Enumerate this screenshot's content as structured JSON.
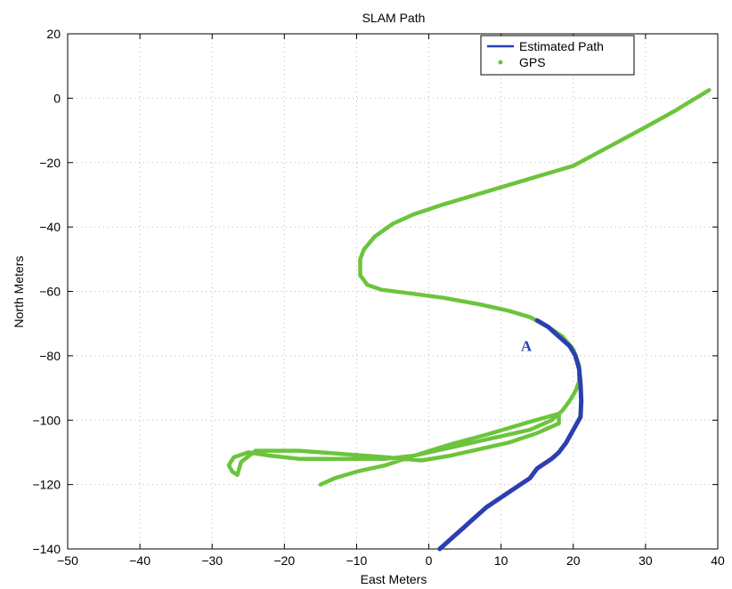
{
  "chart_data": {
    "type": "line",
    "title": "SLAM Path",
    "xlabel": "East Meters",
    "ylabel": "North Meters",
    "xlim": [
      -50,
      40
    ],
    "ylim": [
      -140,
      20
    ],
    "xticks": [
      -50,
      -40,
      -30,
      -20,
      -10,
      0,
      10,
      20,
      30,
      40
    ],
    "yticks": [
      20,
      0,
      -20,
      -40,
      -60,
      -80,
      -100,
      -120,
      -140
    ],
    "grid": true,
    "legend_position": "top-right",
    "series": [
      {
        "name": "Estimated Path",
        "color": "#2b3fb0",
        "style": "line",
        "x": [
          1.5,
          3,
          5,
          6,
          8,
          10,
          12,
          14,
          15,
          17,
          18,
          19,
          20,
          21,
          21.1,
          21,
          20.8,
          20.3,
          19.5,
          18,
          16.5,
          15
        ],
        "y": [
          -140,
          -137,
          -133,
          -131,
          -127,
          -124,
          -121,
          -118,
          -115,
          -112,
          -110,
          -107,
          -103,
          -99,
          -94,
          -89,
          -84,
          -80,
          -77,
          -74,
          -71,
          -69
        ]
      },
      {
        "name": "GPS",
        "color": "#6cc43c",
        "style": "dots",
        "x": [
          38.8,
          34,
          30,
          25,
          20,
          14,
          8,
          2,
          -2,
          -5,
          -7.5,
          -9,
          -9.5,
          -9.5,
          -9.5,
          -8.5,
          -6.5,
          -3,
          2,
          7,
          11,
          14,
          16.5,
          18.5,
          20,
          20.8,
          20.8,
          20.3,
          19.5,
          18.5,
          17,
          14,
          10,
          6,
          2,
          -2,
          -6,
          -10,
          -14,
          -18,
          -22,
          -25,
          -27,
          -27.7,
          -27.2,
          -26.5,
          -26.5,
          -26,
          -24,
          -18,
          -12,
          -6,
          -1,
          3,
          7,
          11,
          15,
          18,
          18,
          14,
          8,
          3,
          -2,
          -6,
          -10,
          -13,
          -15
        ],
        "y": [
          2.5,
          -4,
          -9,
          -15,
          -21,
          -25,
          -29,
          -33,
          -36,
          -39,
          -43,
          -47,
          -50,
          -53,
          -55,
          -58,
          -59.5,
          -60.5,
          -62,
          -64,
          -66,
          -68,
          -71,
          -74,
          -78,
          -83,
          -88,
          -91,
          -94,
          -97,
          -100,
          -103,
          -105,
          -107,
          -109,
          -111,
          -112,
          -112,
          -112,
          -112,
          -111,
          -110,
          -111.5,
          -114,
          -116,
          -117,
          -117,
          -113,
          -109.5,
          -109.5,
          -110.5,
          -111.5,
          -112.5,
          -111,
          -109,
          -107,
          -104,
          -101,
          -98,
          -100.5,
          -104.5,
          -107.5,
          -111,
          -114,
          -116,
          -118,
          -120
        ]
      }
    ],
    "annotations": [
      {
        "text": "A",
        "x": 13.5,
        "y": -78.5,
        "color": "#2b3fb0"
      }
    ]
  }
}
